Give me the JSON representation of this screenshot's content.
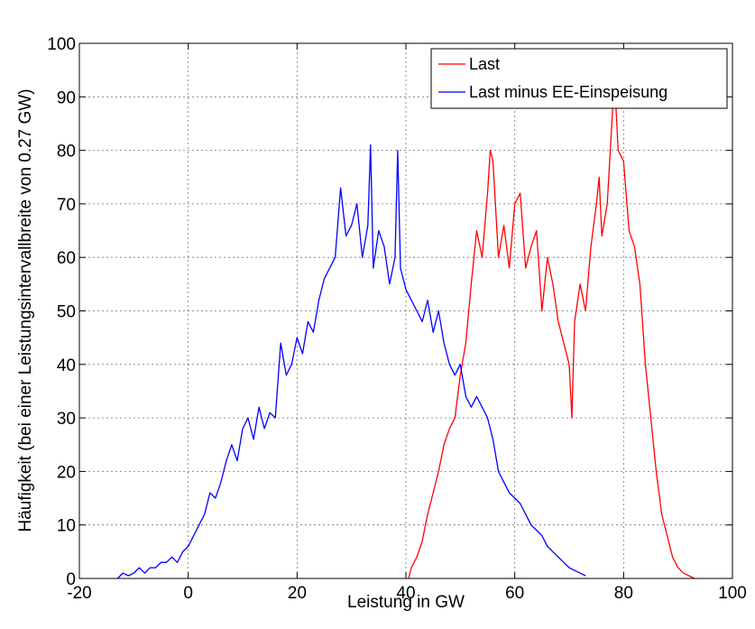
{
  "chart_data": {
    "type": "line",
    "xlabel": "Leistung in GW",
    "ylabel": "Häufigkeit (bei einer Leistungsintervallbreite von 0.27 GW)",
    "xlim": [
      -20,
      100
    ],
    "ylim": [
      0,
      100
    ],
    "xticks": [
      -20,
      0,
      20,
      40,
      60,
      80,
      100
    ],
    "yticks": [
      0,
      10,
      20,
      30,
      40,
      50,
      60,
      70,
      80,
      90,
      100
    ],
    "xtick_labels": [
      "-20",
      "0",
      "20",
      "40",
      "60",
      "80",
      "100"
    ],
    "ytick_labels": [
      "0",
      "10",
      "20",
      "30",
      "40",
      "50",
      "60",
      "70",
      "80",
      "90",
      "100"
    ],
    "grid": true,
    "legend_position": "top-right",
    "series": [
      {
        "name": "Last",
        "color": "#ff0000",
        "points": [
          [
            40.5,
            0
          ],
          [
            41,
            2
          ],
          [
            42,
            4
          ],
          [
            43,
            7
          ],
          [
            44,
            12
          ],
          [
            45,
            16
          ],
          [
            46,
            20
          ],
          [
            47,
            25
          ],
          [
            48,
            28
          ],
          [
            49,
            30
          ],
          [
            50,
            38
          ],
          [
            51,
            44
          ],
          [
            52,
            55
          ],
          [
            53,
            65
          ],
          [
            54,
            60
          ],
          [
            55,
            72
          ],
          [
            55.5,
            80
          ],
          [
            56,
            78
          ],
          [
            57,
            60
          ],
          [
            58,
            66
          ],
          [
            59,
            58
          ],
          [
            60,
            70
          ],
          [
            61,
            72
          ],
          [
            62,
            58
          ],
          [
            63,
            62
          ],
          [
            64,
            65
          ],
          [
            65,
            50
          ],
          [
            66,
            60
          ],
          [
            67,
            55
          ],
          [
            68,
            48
          ],
          [
            69,
            44
          ],
          [
            70,
            40
          ],
          [
            70.5,
            30
          ],
          [
            71,
            48
          ],
          [
            72,
            55
          ],
          [
            73,
            50
          ],
          [
            74,
            62
          ],
          [
            75,
            70
          ],
          [
            75.5,
            75
          ],
          [
            76,
            64
          ],
          [
            77,
            70
          ],
          [
            78,
            88
          ],
          [
            78.5,
            90
          ],
          [
            79,
            80
          ],
          [
            80,
            78
          ],
          [
            81,
            65
          ],
          [
            82,
            62
          ],
          [
            83,
            55
          ],
          [
            84,
            40
          ],
          [
            85,
            30
          ],
          [
            86,
            20
          ],
          [
            87,
            12
          ],
          [
            88,
            8
          ],
          [
            89,
            4
          ],
          [
            90,
            2
          ],
          [
            91,
            1
          ],
          [
            92,
            0.5
          ],
          [
            93,
            0
          ]
        ]
      },
      {
        "name": "Last minus EE-Einspeisung",
        "color": "#0000ff",
        "points": [
          [
            -13,
            0
          ],
          [
            -12,
            1
          ],
          [
            -11,
            0.5
          ],
          [
            -10,
            1
          ],
          [
            -9,
            2
          ],
          [
            -8,
            1
          ],
          [
            -7,
            2
          ],
          [
            -6,
            2
          ],
          [
            -5,
            3
          ],
          [
            -4,
            3
          ],
          [
            -3,
            4
          ],
          [
            -2,
            3
          ],
          [
            -1,
            5
          ],
          [
            0,
            6
          ],
          [
            1,
            8
          ],
          [
            2,
            10
          ],
          [
            3,
            12
          ],
          [
            4,
            16
          ],
          [
            5,
            15
          ],
          [
            6,
            18
          ],
          [
            7,
            22
          ],
          [
            8,
            25
          ],
          [
            9,
            22
          ],
          [
            10,
            28
          ],
          [
            11,
            30
          ],
          [
            12,
            26
          ],
          [
            13,
            32
          ],
          [
            14,
            28
          ],
          [
            15,
            31
          ],
          [
            16,
            30
          ],
          [
            17,
            44
          ],
          [
            18,
            38
          ],
          [
            19,
            40
          ],
          [
            20,
            45
          ],
          [
            21,
            42
          ],
          [
            22,
            48
          ],
          [
            23,
            46
          ],
          [
            24,
            52
          ],
          [
            25,
            56
          ],
          [
            26,
            58
          ],
          [
            27,
            60
          ],
          [
            28,
            73
          ],
          [
            29,
            64
          ],
          [
            30,
            66
          ],
          [
            31,
            70
          ],
          [
            32,
            60
          ],
          [
            33,
            66
          ],
          [
            33.5,
            81
          ],
          [
            34,
            58
          ],
          [
            35,
            65
          ],
          [
            36,
            62
          ],
          [
            37,
            55
          ],
          [
            38,
            60
          ],
          [
            38.5,
            80
          ],
          [
            39,
            58
          ],
          [
            40,
            54
          ],
          [
            41,
            52
          ],
          [
            42,
            50
          ],
          [
            43,
            48
          ],
          [
            44,
            52
          ],
          [
            45,
            46
          ],
          [
            46,
            50
          ],
          [
            47,
            44
          ],
          [
            48,
            40
          ],
          [
            49,
            38
          ],
          [
            50,
            40
          ],
          [
            51,
            34
          ],
          [
            52,
            32
          ],
          [
            53,
            34
          ],
          [
            54,
            32
          ],
          [
            55,
            30
          ],
          [
            56,
            26
          ],
          [
            57,
            20
          ],
          [
            58,
            18
          ],
          [
            59,
            16
          ],
          [
            60,
            15
          ],
          [
            61,
            14
          ],
          [
            62,
            12
          ],
          [
            63,
            10
          ],
          [
            64,
            9
          ],
          [
            65,
            8
          ],
          [
            66,
            6
          ],
          [
            67,
            5
          ],
          [
            68,
            4
          ],
          [
            69,
            3
          ],
          [
            70,
            2
          ],
          [
            71,
            1.5
          ],
          [
            72,
            1
          ],
          [
            73,
            0.5
          ]
        ]
      }
    ]
  }
}
